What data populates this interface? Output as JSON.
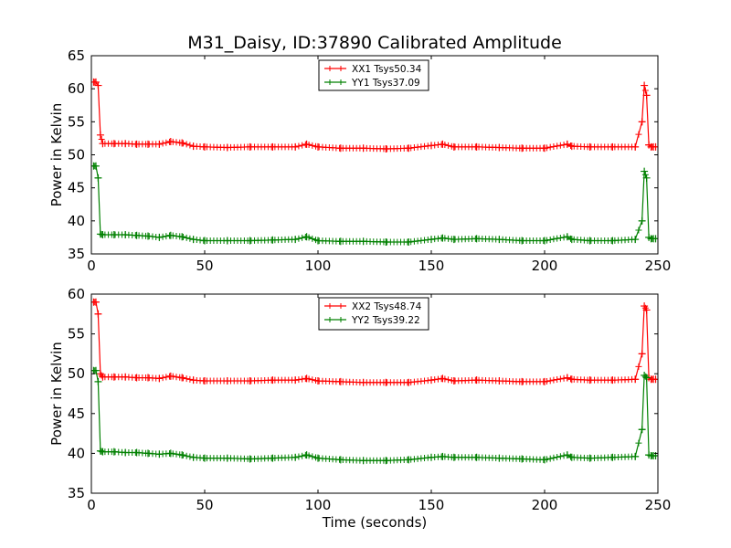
{
  "figure": {
    "title": "M31_Daisy, ID:37890 Calibrated Amplitude",
    "xlabel": "Time (seconds)"
  },
  "chart_data": [
    {
      "type": "line",
      "title": "M31_Daisy, ID:37890 Calibrated Amplitude",
      "xlabel": "",
      "ylabel": "Power in Kelvin",
      "xlim": [
        0,
        250
      ],
      "ylim": [
        35,
        65
      ],
      "xticks": [
        0,
        50,
        100,
        150,
        200,
        250
      ],
      "yticks": [
        35,
        40,
        45,
        50,
        55,
        60,
        65
      ],
      "grid": false,
      "legend_position": "top-center",
      "series": [
        {
          "name": "XX1 Tsys50.34",
          "color": "#ff0000",
          "x": [
            1,
            2,
            3,
            4,
            5,
            10,
            15,
            20,
            25,
            30,
            35,
            40,
            45,
            50,
            60,
            70,
            80,
            90,
            95,
            100,
            110,
            120,
            130,
            140,
            150,
            155,
            160,
            170,
            180,
            190,
            200,
            210,
            212,
            220,
            230,
            240,
            243,
            244,
            245,
            246,
            247,
            248,
            249
          ],
          "y": [
            61.0,
            61.0,
            60.5,
            53.0,
            51.7,
            51.7,
            51.7,
            51.6,
            51.6,
            51.6,
            52.0,
            51.8,
            51.3,
            51.2,
            51.1,
            51.2,
            51.2,
            51.2,
            51.6,
            51.2,
            51.0,
            51.0,
            50.9,
            51.0,
            51.4,
            51.6,
            51.2,
            51.2,
            51.1,
            51.0,
            51.0,
            51.6,
            51.3,
            51.2,
            51.2,
            51.2,
            55.0,
            60.5,
            59.0,
            51.5,
            51.2,
            51.2,
            51.2
          ]
        },
        {
          "name": "YY1 Tsys37.09",
          "color": "#008000",
          "x": [
            1,
            2,
            3,
            4,
            5,
            10,
            15,
            20,
            25,
            30,
            35,
            40,
            45,
            50,
            60,
            70,
            80,
            90,
            95,
            100,
            110,
            120,
            130,
            140,
            150,
            155,
            160,
            170,
            180,
            190,
            200,
            210,
            212,
            220,
            230,
            240,
            243,
            244,
            245,
            246,
            247,
            248,
            249
          ],
          "y": [
            48.3,
            48.3,
            46.5,
            38.0,
            37.9,
            37.9,
            37.9,
            37.8,
            37.7,
            37.5,
            37.8,
            37.6,
            37.2,
            37.0,
            37.0,
            37.0,
            37.1,
            37.2,
            37.6,
            37.0,
            36.9,
            36.9,
            36.8,
            36.8,
            37.2,
            37.4,
            37.2,
            37.3,
            37.2,
            37.0,
            37.0,
            37.6,
            37.2,
            37.0,
            37.0,
            37.2,
            40.0,
            47.5,
            46.5,
            37.5,
            37.3,
            37.3,
            37.3
          ]
        }
      ]
    },
    {
      "type": "line",
      "title": "",
      "xlabel": "Time (seconds)",
      "ylabel": "Power in Kelvin",
      "xlim": [
        0,
        250
      ],
      "ylim": [
        35,
        60
      ],
      "xticks": [
        0,
        50,
        100,
        150,
        200,
        250
      ],
      "yticks": [
        35,
        40,
        45,
        50,
        55,
        60
      ],
      "grid": false,
      "legend_position": "top-center",
      "series": [
        {
          "name": "XX2 Tsys48.74",
          "color": "#ff0000",
          "x": [
            1,
            2,
            3,
            4,
            5,
            10,
            15,
            20,
            25,
            30,
            35,
            40,
            45,
            50,
            60,
            70,
            80,
            90,
            95,
            100,
            110,
            120,
            130,
            140,
            150,
            155,
            160,
            170,
            180,
            190,
            200,
            210,
            212,
            220,
            230,
            240,
            243,
            244,
            245,
            246,
            247,
            248,
            249
          ],
          "y": [
            59.0,
            59.0,
            57.5,
            50.0,
            49.6,
            49.6,
            49.6,
            49.5,
            49.5,
            49.4,
            49.7,
            49.5,
            49.2,
            49.1,
            49.1,
            49.1,
            49.2,
            49.2,
            49.4,
            49.1,
            49.0,
            48.9,
            48.9,
            48.9,
            49.2,
            49.4,
            49.1,
            49.2,
            49.1,
            49.0,
            49.0,
            49.5,
            49.3,
            49.2,
            49.2,
            49.3,
            52.5,
            58.5,
            58.0,
            49.5,
            49.3,
            49.3,
            49.3
          ]
        },
        {
          "name": "YY2 Tsys39.22",
          "color": "#008000",
          "x": [
            1,
            2,
            3,
            4,
            5,
            10,
            15,
            20,
            25,
            30,
            35,
            40,
            45,
            50,
            60,
            70,
            80,
            90,
            95,
            100,
            110,
            120,
            130,
            140,
            150,
            155,
            160,
            170,
            180,
            190,
            200,
            210,
            212,
            220,
            230,
            240,
            243,
            244,
            245,
            246,
            247,
            248,
            249
          ],
          "y": [
            50.4,
            50.4,
            49.0,
            40.3,
            40.2,
            40.2,
            40.1,
            40.1,
            40.0,
            39.9,
            40.0,
            39.8,
            39.5,
            39.4,
            39.4,
            39.3,
            39.4,
            39.5,
            39.8,
            39.4,
            39.2,
            39.1,
            39.1,
            39.2,
            39.5,
            39.6,
            39.5,
            39.5,
            39.4,
            39.3,
            39.2,
            39.8,
            39.5,
            39.4,
            39.5,
            39.6,
            43.0,
            49.8,
            49.5,
            39.8,
            39.7,
            39.7,
            39.7
          ]
        }
      ]
    }
  ]
}
